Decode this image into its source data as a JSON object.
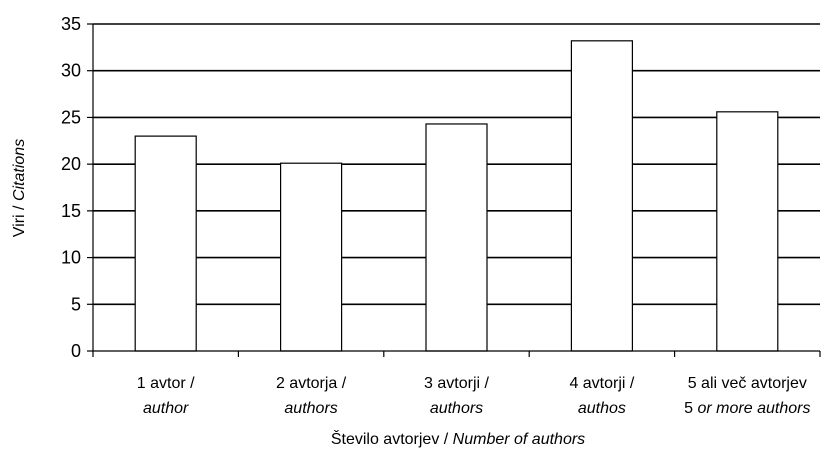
{
  "chart_data": {
    "type": "bar",
    "categories": [
      {
        "line1": "1 avtor /",
        "line2_prefix": "",
        "line2_italic": "author"
      },
      {
        "line1": "2 avtorja /",
        "line2_prefix": "",
        "line2_italic": "authors"
      },
      {
        "line1": "3 avtorji /",
        "line2_prefix": "",
        "line2_italic": "authors"
      },
      {
        "line1": "4 avtorji /",
        "line2_prefix": "",
        "line2_italic": "authos"
      },
      {
        "line1": "5 ali več avtorjev",
        "line2_prefix": "5 ",
        "line2_italic": "or more authors"
      }
    ],
    "values": [
      23.0,
      20.1,
      24.3,
      33.2,
      25.6
    ],
    "ylim": [
      0,
      35
    ],
    "yticks": [
      0,
      5,
      10,
      15,
      20,
      25,
      30,
      35
    ],
    "grid": true,
    "xlabel_plain": "Število avtorjev / ",
    "xlabel_italic": "Number of authors",
    "ylabel_plain": "Viri / ",
    "ylabel_italic": "Citations",
    "colors": {
      "bar_fill": "#ffffff",
      "bar_stroke": "#000000",
      "grid": "#000000"
    }
  }
}
